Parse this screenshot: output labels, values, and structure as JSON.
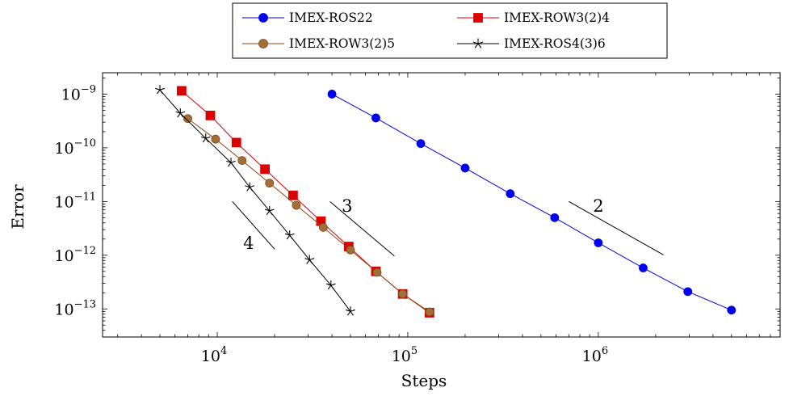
{
  "chart_data": {
    "type": "line",
    "xlabel": "Steps",
    "ylabel": "Error",
    "xscale": "log",
    "yscale": "log",
    "xlim": [
      2500,
      9000000
    ],
    "ylim": [
      3e-14,
      2.5e-09
    ],
    "xticks": [
      {
        "value": 10000,
        "base": "10",
        "exp": "4"
      },
      {
        "value": 100000,
        "base": "10",
        "exp": "5"
      },
      {
        "value": 1000000,
        "base": "10",
        "exp": "6"
      }
    ],
    "yticks": [
      {
        "value": 1e-09,
        "base": "10",
        "exp": "−9"
      },
      {
        "value": 1e-10,
        "base": "10",
        "exp": "−10"
      },
      {
        "value": 1e-11,
        "base": "10",
        "exp": "−11"
      },
      {
        "value": 1e-12,
        "base": "10",
        "exp": "−12"
      },
      {
        "value": 1e-13,
        "base": "10",
        "exp": "−13"
      }
    ],
    "grid": false,
    "legend_position": "top-center",
    "series": [
      {
        "name": "IMEX-ROS22",
        "color": "#0000ee",
        "marker": "circle",
        "marker_color": "#0000ee",
        "x": [
          40000,
          68000,
          117000,
          200000,
          345000,
          590000,
          1000000,
          1720000,
          2950000,
          5000000
        ],
        "y": [
          1e-09,
          3.6e-10,
          1.2e-10,
          4.2e-11,
          1.4e-11,
          5e-12,
          1.7e-12,
          5.8e-13,
          2.1e-13,
          9.5e-14
        ]
      },
      {
        "name": "IMEX-ROW3(2)4",
        "color": "#dd0000",
        "marker": "square",
        "marker_color": "#dd0000",
        "x": [
          6500,
          9200,
          12600,
          17800,
          25000,
          35000,
          49000,
          68000,
          94000,
          130000
        ],
        "y": [
          1.15e-09,
          4e-10,
          1.25e-10,
          4e-11,
          1.3e-11,
          4.3e-12,
          1.45e-12,
          5e-13,
          1.9e-13,
          8.5e-14
        ]
      },
      {
        "name": "IMEX-ROW3(2)5",
        "color": "#8b4513",
        "marker": "circle",
        "marker_color": "#a0703a",
        "x": [
          7000,
          9800,
          13500,
          18800,
          26000,
          36000,
          50000,
          69000,
          94000,
          130000
        ],
        "y": [
          3.5e-10,
          1.45e-10,
          5.8e-11,
          2.2e-11,
          8.5e-12,
          3.3e-12,
          1.25e-12,
          4.8e-13,
          1.9e-13,
          8.8e-14
        ]
      },
      {
        "name": "IMEX-ROS4(3)6",
        "color": "#000000",
        "marker": "star",
        "marker_color": "#000000",
        "x": [
          5000,
          6400,
          8700,
          11800,
          14800,
          18800,
          24000,
          30500,
          39500,
          50000
        ],
        "y": [
          1.2e-09,
          4.4e-10,
          1.5e-10,
          5.3e-11,
          1.85e-11,
          6.7e-12,
          2.35e-12,
          8.2e-13,
          2.75e-13,
          9e-14
        ]
      }
    ],
    "annotations": [
      {
        "label": "2",
        "slope": 2,
        "x1": 700000,
        "y1": 1e-11,
        "x2": 2200000,
        "y2": 1.013e-12,
        "label_x": 1000000,
        "label_y": 6.5e-12
      },
      {
        "label": "3",
        "slope": 3,
        "x1": 39000,
        "y1": 1e-11,
        "x2": 85000,
        "y2": 9.66e-13,
        "label_x": 48000,
        "label_y": 6.5e-12
      },
      {
        "label": "4",
        "slope": 4,
        "x1": 12000,
        "y1": 1e-11,
        "x2": 20000,
        "y2": 1.296e-12,
        "label_x": 14600,
        "label_y": 1.3e-12
      }
    ]
  }
}
